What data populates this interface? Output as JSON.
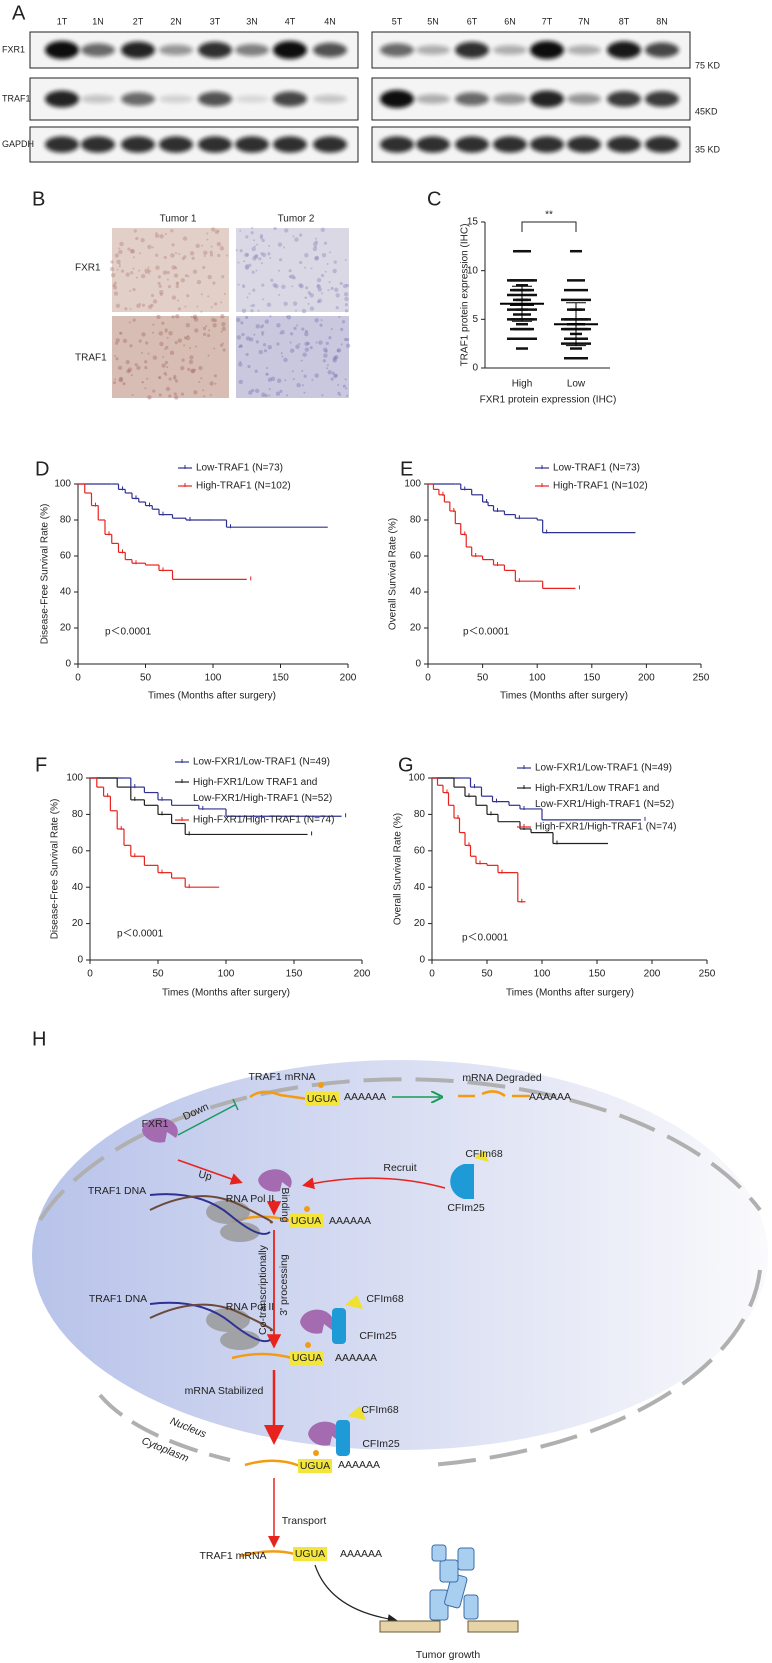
{
  "panel_a": {
    "label": "A",
    "lanes_left": [
      "1T",
      "1N",
      "2T",
      "2N",
      "3T",
      "3N",
      "4T",
      "4N"
    ],
    "lanes_right": [
      "5T",
      "5N",
      "6T",
      "6N",
      "7T",
      "7N",
      "8T",
      "8N"
    ],
    "proteins": [
      "FXR1",
      "TRAF1",
      "GAPDH"
    ],
    "sizes": [
      "75 KD",
      "45KD",
      "35 KD"
    ]
  },
  "panel_b": {
    "label": "B",
    "columns": [
      "Tumor 1",
      "Tumor 2"
    ],
    "rows": [
      "FXR1",
      "TRAF1"
    ]
  },
  "chart_data": [
    {
      "type": "dot",
      "panel": "C",
      "categories": [
        "High",
        "Low"
      ],
      "values": [
        6.6,
        4.5
      ],
      "errors": [
        1.8,
        2.2
      ],
      "points": [
        [
          12,
          12,
          9,
          9,
          8.5,
          8,
          8,
          7.5,
          7,
          7,
          6.5,
          6,
          6,
          5.5,
          5,
          5,
          4.5,
          4,
          4,
          3,
          2
        ],
        [
          12,
          9,
          8,
          7,
          6,
          6,
          5,
          5,
          4.5,
          4.5,
          4,
          4,
          3.5,
          3,
          3,
          2.5,
          2,
          1,
          1
        ]
      ],
      "significance": "**",
      "ylabel": "TRAF1 protein expression (IHC)",
      "xlabel": "FXR1 protein expression (IHC)",
      "ylim": [
        0,
        15
      ],
      "yticks": [
        0,
        5,
        10,
        15
      ]
    },
    {
      "type": "line",
      "step": true,
      "panel": "D",
      "xlabel": "Times (Months after surgery)",
      "ylabel": "Disease-Free Survival Rate (%)",
      "annotation": "p＜0.0001",
      "xlim": [
        0,
        200
      ],
      "xticks": [
        0,
        50,
        100,
        150,
        200
      ],
      "ylim": [
        0,
        100
      ],
      "yticks": [
        0,
        20,
        40,
        60,
        80,
        100
      ],
      "series": [
        {
          "name": "Low-TRAF1 (N=73)",
          "color": "#2e3192",
          "x": [
            0,
            25,
            30,
            35,
            40,
            45,
            50,
            55,
            60,
            70,
            80,
            100,
            110,
            185
          ],
          "values": [
            100,
            100,
            97,
            95,
            92,
            90,
            88,
            86,
            83,
            81,
            80,
            80,
            76,
            76
          ]
        },
        {
          "name": "High-TRAF1 (N=102)",
          "color": "#e8231d",
          "x": [
            0,
            5,
            10,
            15,
            20,
            25,
            30,
            35,
            40,
            50,
            60,
            70,
            125
          ],
          "values": [
            100,
            95,
            88,
            80,
            72,
            67,
            62,
            58,
            56,
            55,
            52,
            47,
            47
          ]
        }
      ]
    },
    {
      "type": "line",
      "step": true,
      "panel": "E",
      "xlabel": "Times (Months after surgery)",
      "ylabel": "Overall Survival Rate (%)",
      "annotation": "p＜0.0001",
      "xlim": [
        0,
        250
      ],
      "xticks": [
        0,
        50,
        100,
        150,
        200,
        250
      ],
      "ylim": [
        0,
        100
      ],
      "yticks": [
        0,
        20,
        40,
        60,
        80,
        100
      ],
      "series": [
        {
          "name": "Low-TRAF1 (N=73)",
          "color": "#2e3192",
          "x": [
            0,
            25,
            30,
            40,
            50,
            55,
            60,
            70,
            80,
            100,
            105,
            190
          ],
          "values": [
            100,
            100,
            97,
            94,
            90,
            88,
            85,
            83,
            81,
            80,
            73,
            73
          ]
        },
        {
          "name": "High-TRAF1 (N=102)",
          "color": "#e8231d",
          "x": [
            0,
            5,
            10,
            15,
            20,
            25,
            30,
            35,
            40,
            50,
            60,
            70,
            80,
            105,
            135
          ],
          "values": [
            100,
            97,
            94,
            90,
            85,
            78,
            72,
            65,
            60,
            58,
            55,
            52,
            46,
            42,
            42
          ]
        }
      ]
    },
    {
      "type": "line",
      "step": true,
      "panel": "F",
      "xlabel": "Times (Months after surgery)",
      "ylabel": "Disease-Free Survival Rate (%)",
      "annotation": "p＜0.0001",
      "xlim": [
        0,
        200
      ],
      "xticks": [
        0,
        50,
        100,
        150,
        200
      ],
      "ylim": [
        0,
        100
      ],
      "yticks": [
        0,
        20,
        40,
        60,
        80,
        100
      ],
      "series": [
        {
          "name": "Low-FXR1/Low-TRAF1 (N=49)",
          "color": "#2e3192",
          "x": [
            0,
            25,
            30,
            40,
            50,
            60,
            80,
            100,
            185
          ],
          "values": [
            100,
            100,
            95,
            92,
            88,
            85,
            83,
            79,
            79
          ]
        },
        {
          "name": "High-FXR1/Low TRAF1  and\nLow-FXR1/High-TRAF1 (N=52)",
          "color": "#222222",
          "x": [
            0,
            20,
            30,
            40,
            50,
            60,
            70,
            100,
            160
          ],
          "values": [
            100,
            95,
            88,
            85,
            80,
            75,
            69,
            69,
            69
          ]
        },
        {
          "name": "High-FXR1/High-TRAF1 (N=74)",
          "color": "#e8231d",
          "x": [
            0,
            5,
            10,
            15,
            20,
            25,
            30,
            40,
            50,
            60,
            70,
            95
          ],
          "values": [
            100,
            95,
            90,
            82,
            72,
            63,
            57,
            52,
            48,
            45,
            40,
            40
          ]
        }
      ]
    },
    {
      "type": "line",
      "step": true,
      "panel": "G",
      "xlabel": "Times (Months after surgery)",
      "ylabel": "Overall Survival Rate (%)",
      "annotation": "p＜0.0001",
      "xlim": [
        0,
        250
      ],
      "xticks": [
        0,
        50,
        100,
        150,
        200,
        250
      ],
      "ylim": [
        0,
        100
      ],
      "yticks": [
        0,
        20,
        40,
        60,
        80,
        100
      ],
      "series": [
        {
          "name": "Low-FXR1/Low-TRAF1 (N=49)",
          "color": "#2e3192",
          "x": [
            0,
            25,
            35,
            45,
            55,
            70,
            80,
            100,
            190
          ],
          "values": [
            100,
            100,
            95,
            90,
            87,
            85,
            83,
            77,
            77
          ]
        },
        {
          "name": "High-FXR1/Low TRAF1  and\nLow-FXR1/High-TRAF1 (N=52)",
          "color": "#222222",
          "x": [
            0,
            20,
            30,
            40,
            50,
            60,
            80,
            90,
            110,
            160
          ],
          "values": [
            100,
            95,
            90,
            85,
            80,
            76,
            72,
            70,
            64,
            64
          ]
        },
        {
          "name": "High-FXR1/High-TRAF1 (N=74)",
          "color": "#e8231d",
          "x": [
            0,
            5,
            10,
            15,
            20,
            25,
            30,
            35,
            40,
            50,
            60,
            75,
            78,
            85
          ],
          "values": [
            100,
            96,
            92,
            85,
            78,
            70,
            63,
            57,
            53,
            52,
            48,
            48,
            32,
            32
          ]
        }
      ]
    }
  ],
  "panel_h": {
    "label": "H",
    "texts": [
      "TRAF1 mRNA",
      "mRNA Degraded",
      "UGUA",
      "AAAAAA",
      "AAAAAA",
      "Down",
      "FXR1",
      "Up",
      "Recruit",
      "CFIm68",
      "CFIm25",
      "TRAF1 DNA",
      "RNA Pol II",
      "Binding",
      "UGUA",
      "AAAAAA",
      "Co-transcriptionally",
      "3' processing",
      "TRAF1 DNA",
      "RNA Pol II",
      "CFIm68",
      "CFIm25",
      "UGUA",
      "AAAAAA",
      "mRNA  Stabilized",
      "CFIm68",
      "CFIm25",
      "Nucleus",
      "Cytoplasm",
      "UGUA",
      "AAAAAA",
      "Transport",
      "TRAF1 mRNA",
      "UGUA",
      "AAAAAA",
      "Tumor growth"
    ]
  }
}
